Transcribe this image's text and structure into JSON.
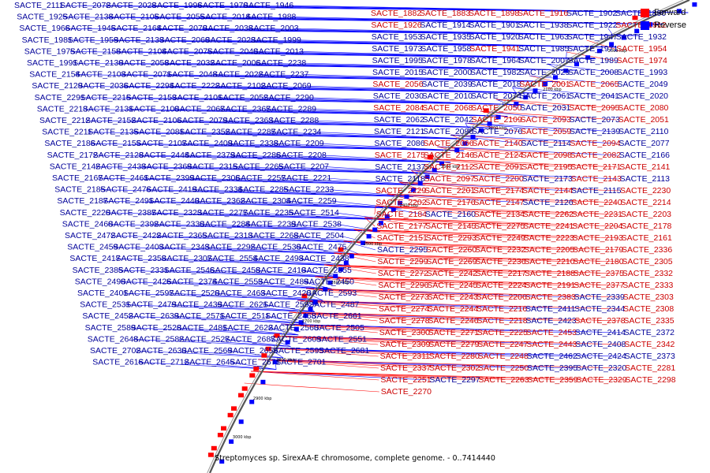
{
  "caption": "Streptomyces sp. SirexAA-E chromosome, complete genome. - 0..7414440",
  "legend": [
    {
      "label": "Forward",
      "color": "#ff0000"
    },
    {
      "label": "Reverse",
      "color": "#0000ff"
    }
  ],
  "colors": {
    "forward": "#ff0000",
    "reverse": "#0000ff",
    "forward_text": "#cc0000",
    "reverse_text": "#000099",
    "axis": "#000000"
  },
  "ticks": [
    "2000 kbp",
    "2100 kbp",
    "2200 kbp",
    "2300 kbp",
    "2400 kbp",
    "2500 kbp",
    "2600 kbp",
    "2700 kbp",
    "2800 kbp",
    "2900 kbp",
    "3000 kbp"
  ],
  "reverse_labels": [
    "SACTE_2111",
    "SACTE_2072",
    "SACTE_2028",
    "SACTE_1996",
    "SACTE_1970",
    "SACTE_1946",
    "SACTE_1925",
    "SACTE_2138",
    "SACTE_2105",
    "SACTE_2055",
    "SACTE_2014",
    "SACTE_1988",
    "SACTE_1966",
    "SACTE_1945",
    "SACTE_2164",
    "SACTE_2070",
    "SACTE_2038",
    "SACTE_2003",
    "SACTE_1981",
    "SACTE_1959",
    "SACTE_2133",
    "SACTE_2060",
    "SACTE_2023",
    "SACTE_1999",
    "SACTE_1975",
    "SACTE_2158",
    "SACTE_2104",
    "SACTE_2075",
    "SACTE_2040",
    "SACTE_2013",
    "SACTE_1991",
    "SACTE_2130",
    "SACTE_2058",
    "SACTE_2032",
    "SACTE_2006",
    "SACTE_2238",
    "SACTE_2154",
    "SACTE_2103",
    "SACTE_2071",
    "SACTE_2048",
    "SACTE_2022",
    "SACTE_2237",
    "SACTE_2129",
    "SACTE_2036",
    "SACTE_2294",
    "SACTE_2222",
    "SACTE_2102",
    "SACTE_2069",
    "SACTE_2291",
    "SACTE_2215",
    "SACTE_2153",
    "SACTE_2101",
    "SACTE_2052",
    "SACTE_2290",
    "SACTE_2213",
    "SACTE_2131",
    "SACTE_2100",
    "SACTE_2067",
    "SACTE_2367",
    "SACTE_2289",
    "SACTE_2212",
    "SACTE_2152",
    "SACTE_2106",
    "SACTE_2079",
    "SACTE_2363",
    "SACTE_2288",
    "SACTE_2211",
    "SACTE_2135",
    "SACTE_2081",
    "SACTE_2352",
    "SACTE_2287",
    "SACTE_2234",
    "SACTE_2186",
    "SACTE_2155",
    "SACTE_2107",
    "SACTE_2409",
    "SACTE_2338",
    "SACTE_2209",
    "SACTE_2172",
    "SACTE_2128",
    "SACTE_2444",
    "SACTE_2379",
    "SACTE_2286",
    "SACTE_2208",
    "SACTE_2142",
    "SACTE_2433",
    "SACTE_2369",
    "SACTE_2315",
    "SACTE_2265",
    "SACTE_2207",
    "SACTE_2167",
    "SACTE_2461",
    "SACTE_2399",
    "SACTE_2306",
    "SACTE_2257",
    "SACTE_2221",
    "SACTE_2185",
    "SACTE_2476",
    "SACTE_2419",
    "SACTE_2334",
    "SACTE_2285",
    "SACTE_2233",
    "SACTE_2187",
    "SACTE_2491",
    "SACTE_2440",
    "SACTE_2362",
    "SACTE_2304",
    "SACTE_2259",
    "SACTE_2220",
    "SACTE_2387",
    "SACTE_2323",
    "SACTE_2277",
    "SACTE_2235",
    "SACTE_2514",
    "SACTE_2460",
    "SACTE_2392",
    "SACTE_2330",
    "SACTE_2284",
    "SACTE_2239",
    "SACTE_2538",
    "SACTE_2472",
    "SACTE_2422",
    "SACTE_2365",
    "SACTE_2313",
    "SACTE_2268",
    "SACTE_2504",
    "SACTE_2459",
    "SACTE_2403",
    "SACTE_2343",
    "SACTE_2292",
    "SACTE_2530",
    "SACTE_2475",
    "SACTE_2417",
    "SACTE_2358",
    "SACTE_2307",
    "SACTE_2554",
    "SACTE_2493",
    "SACTE_2438",
    "SACTE_2385",
    "SACTE_2331",
    "SACTE_2546",
    "SACTE_2458",
    "SACTE_2410",
    "SACTE_2355",
    "SACTE_2490",
    "SACTE_2426",
    "SACTE_2374",
    "SACTE_2553",
    "SACTE_2489",
    "SACTE_2450",
    "SACTE_2401",
    "SACTE_2597",
    "SACTE_2520",
    "SACTE_2463",
    "SACTE_2420",
    "SACTE_2593",
    "SACTE_2531",
    "SACTE_2479",
    "SACTE_2439",
    "SACTE_2621",
    "SACTE_2592",
    "SACTE_2487",
    "SACTE_2452",
    "SACTE_2639",
    "SACTE_2571",
    "SACTE_2511",
    "SACTE_2468",
    "SACTE_2661",
    "SACTE_2589",
    "SACTE_2528",
    "SACTE_2481",
    "SACTE_2622",
    "SACTE_2560",
    "SACTE_2505",
    "SACTE_2648",
    "SACTE_2582",
    "SACTE_2527",
    "SACTE_2687",
    "SACTE_2609",
    "SACTE_2551",
    "SACTE_2702",
    "SACTE_2630",
    "SACTE_2569",
    "SACTE_2659",
    "SACTE_2595",
    "SACTE_2681",
    "SACTE_2616",
    "SACTE_2712",
    "SACTE_2645",
    "SACTE_2671",
    "SACTE_2701"
  ],
  "right_labels": [
    {
      "text": "SACTE_1882",
      "f": true
    },
    {
      "text": "SACTE_1883",
      "f": true
    },
    {
      "text": "SACTE_1898",
      "f": true
    },
    {
      "text": "SACTE_1916",
      "f": true
    },
    {
      "text": "SACTE_1902",
      "f": false
    },
    {
      "text": "SACTE_1890",
      "f": false
    },
    {
      "text": "SACTE_1926",
      "f": true
    },
    {
      "text": "SACTE_1914",
      "f": false
    },
    {
      "text": "SACTE_1901",
      "f": false
    },
    {
      "text": "SACTE_1938",
      "f": false
    },
    {
      "text": "SACTE_1922",
      "f": false
    },
    {
      "text": "SACTE_1912",
      "f": true
    },
    {
      "text": "SACTE_1953",
      "f": false
    },
    {
      "text": "SACTE_1935",
      "f": false
    },
    {
      "text": "SACTE_1920",
      "f": false
    },
    {
      "text": "SACTE_1963",
      "f": false
    },
    {
      "text": "SACTE_1947",
      "f": false
    },
    {
      "text": "SACTE_1932",
      "f": false
    },
    {
      "text": "SACTE_1973",
      "f": false
    },
    {
      "text": "SACTE_1958",
      "f": false
    },
    {
      "text": "SACTE_1941",
      "f": true
    },
    {
      "text": "SACTE_1985",
      "f": false
    },
    {
      "text": "SACTE_1971",
      "f": false
    },
    {
      "text": "SACTE_1954",
      "f": true
    },
    {
      "text": "SACTE_1995",
      "f": false
    },
    {
      "text": "SACTE_1978",
      "f": false
    },
    {
      "text": "SACTE_1964",
      "f": false
    },
    {
      "text": "SACTE_2007",
      "f": false
    },
    {
      "text": "SACTE_1989",
      "f": false
    },
    {
      "text": "SACTE_1974",
      "f": true
    },
    {
      "text": "SACTE_2015",
      "f": false
    },
    {
      "text": "SACTE_2000",
      "f": false
    },
    {
      "text": "SACTE_1982",
      "f": false
    },
    {
      "text": "SACTE_2029",
      "f": false
    },
    {
      "text": "SACTE_2008",
      "f": false
    },
    {
      "text": "SACTE_1993",
      "f": false
    },
    {
      "text": "SACTE_2056",
      "f": true
    },
    {
      "text": "SACTE_2039",
      "f": false
    },
    {
      "text": "SACTE_2018",
      "f": false
    },
    {
      "text": "SACTE_2001",
      "f": true
    },
    {
      "text": "SACTE_2065",
      "f": true
    },
    {
      "text": "SACTE_2049",
      "f": false
    },
    {
      "text": "SACTE_2030",
      "f": false
    },
    {
      "text": "SACTE_2010",
      "f": false
    },
    {
      "text": "SACTE_2074",
      "f": false
    },
    {
      "text": "SACTE_2061",
      "f": false
    },
    {
      "text": "SACTE_2041",
      "f": false
    },
    {
      "text": "SACTE_2020",
      "f": false
    },
    {
      "text": "SACTE_2084",
      "f": true
    },
    {
      "text": "SACTE_2068",
      "f": true
    },
    {
      "text": "SACTE_2050",
      "f": true
    },
    {
      "text": "SACTE_2031",
      "f": false
    },
    {
      "text": "SACTE_2095",
      "f": true
    },
    {
      "text": "SACTE_2080",
      "f": true
    },
    {
      "text": "SACTE_2062",
      "f": false
    },
    {
      "text": "SACTE_2042",
      "f": false
    },
    {
      "text": "SACTE_2109",
      "f": true
    },
    {
      "text": "SACTE_2093",
      "f": true
    },
    {
      "text": "SACTE_2073",
      "f": false
    },
    {
      "text": "SACTE_2051",
      "f": true
    },
    {
      "text": "SACTE_2121",
      "f": false
    },
    {
      "text": "SACTE_2096",
      "f": false
    },
    {
      "text": "SACTE_2076",
      "f": false
    },
    {
      "text": "SACTE_2059",
      "f": true
    },
    {
      "text": "SACTE_2139",
      "f": false
    },
    {
      "text": "SACTE_2110",
      "f": false
    },
    {
      "text": "SACTE_2086",
      "f": false
    },
    {
      "text": "SACTE_2066",
      "f": true
    },
    {
      "text": "SACTE_2140",
      "f": true
    },
    {
      "text": "SACTE_2114",
      "f": false
    },
    {
      "text": "SACTE_2094",
      "f": true
    },
    {
      "text": "SACTE_2077",
      "f": false
    },
    {
      "text": "SACTE_2175",
      "f": true
    },
    {
      "text": "SACTE_2146",
      "f": true
    },
    {
      "text": "SACTE_2124",
      "f": true
    },
    {
      "text": "SACTE_2098",
      "f": true
    },
    {
      "text": "SACTE_2082",
      "f": true
    },
    {
      "text": "SACTE_2166",
      "f": false
    },
    {
      "text": "SACTE_2137",
      "f": false
    },
    {
      "text": "SACTE_2112",
      "f": true
    },
    {
      "text": "SACTE_2091",
      "f": true
    },
    {
      "text": "SACTE_2195",
      "f": true
    },
    {
      "text": "SACTE_2171",
      "f": true
    },
    {
      "text": "SACTE_2141",
      "f": true
    },
    {
      "text": "SACTE_2118",
      "f": false
    },
    {
      "text": "SACTE_2097",
      "f": true
    },
    {
      "text": "SACTE_2200",
      "f": true
    },
    {
      "text": "SACTE_2173",
      "f": false
    },
    {
      "text": "SACTE_2143",
      "f": true
    },
    {
      "text": "SACTE_2113",
      "f": false
    },
    {
      "text": "SACTE_2229",
      "f": true
    },
    {
      "text": "SACTE_2201",
      "f": true
    },
    {
      "text": "SACTE_2174",
      "f": true
    },
    {
      "text": "SACTE_2144",
      "f": true
    },
    {
      "text": "SACTE_2115",
      "f": false
    },
    {
      "text": "SACTE_2230",
      "f": true
    },
    {
      "text": "SACTE_2202",
      "f": true
    },
    {
      "text": "SACTE_2176",
      "f": true
    },
    {
      "text": "SACTE_2147",
      "f": true
    },
    {
      "text": "SACTE_2126",
      "f": false
    },
    {
      "text": "SACTE_2240",
      "f": true
    },
    {
      "text": "SACTE_2214",
      "f": true
    },
    {
      "text": "SACTE_2184",
      "f": true
    },
    {
      "text": "SACTE_2160",
      "f": false
    },
    {
      "text": "SACTE_2134",
      "f": true
    },
    {
      "text": "SACTE_2262",
      "f": true
    },
    {
      "text": "SACTE_2231",
      "f": true
    },
    {
      "text": "SACTE_2203",
      "f": true
    },
    {
      "text": "SACTE_2177",
      "f": true
    },
    {
      "text": "SACTE_2145",
      "f": true
    },
    {
      "text": "SACTE_2275",
      "f": true
    },
    {
      "text": "SACTE_2241",
      "f": true
    },
    {
      "text": "SACTE_2204",
      "f": true
    },
    {
      "text": "SACTE_2178",
      "f": true
    },
    {
      "text": "SACTE_2151",
      "f": true
    },
    {
      "text": "SACTE_2293",
      "f": true
    },
    {
      "text": "SACTE_2249",
      "f": true
    },
    {
      "text": "SACTE_2223",
      "f": true
    },
    {
      "text": "SACTE_2193",
      "f": true
    },
    {
      "text": "SACTE_2161",
      "f": true
    },
    {
      "text": "SACTE_2295",
      "f": false
    },
    {
      "text": "SACTE_2260",
      "f": true
    },
    {
      "text": "SACTE_2232",
      "f": true
    },
    {
      "text": "SACTE_2205",
      "f": true
    },
    {
      "text": "SACTE_2179",
      "f": true
    },
    {
      "text": "SACTE_2336",
      "f": true
    },
    {
      "text": "SACTE_2299",
      "f": true
    },
    {
      "text": "SACTE_2269",
      "f": true
    },
    {
      "text": "SACTE_2236",
      "f": true
    },
    {
      "text": "SACTE_2210",
      "f": true
    },
    {
      "text": "SACTE_2180",
      "f": true
    },
    {
      "text": "SACTE_2305",
      "f": true
    },
    {
      "text": "SACTE_2272",
      "f": true
    },
    {
      "text": "SACTE_2242",
      "f": true
    },
    {
      "text": "SACTE_2217",
      "f": true
    },
    {
      "text": "SACTE_2188",
      "f": true
    },
    {
      "text": "SACTE_2375",
      "f": true
    },
    {
      "text": "SACTE_2332",
      "f": true
    },
    {
      "text": "SACTE_2296",
      "f": true
    },
    {
      "text": "SACTE_2245",
      "f": true
    },
    {
      "text": "SACTE_2224",
      "f": true
    },
    {
      "text": "SACTE_2191",
      "f": true
    },
    {
      "text": "SACTE_2377",
      "f": true
    },
    {
      "text": "SACTE_2333",
      "f": true
    },
    {
      "text": "SACTE_2273",
      "f": true
    },
    {
      "text": "SACTE_2243",
      "f": true
    },
    {
      "text": "SACTE_2206",
      "f": true
    },
    {
      "text": "SACTE_2383",
      "f": true
    },
    {
      "text": "SACTE_2339",
      "f": false
    },
    {
      "text": "SACTE_2303",
      "f": true
    },
    {
      "text": "SACTE_2274",
      "f": true
    },
    {
      "text": "SACTE_2244",
      "f": true
    },
    {
      "text": "SACTE_2216",
      "f": true
    },
    {
      "text": "SACTE_2411",
      "f": false
    },
    {
      "text": "SACTE_2344",
      "f": false
    },
    {
      "text": "SACTE_2308",
      "f": true
    },
    {
      "text": "SACTE_2278",
      "f": true
    },
    {
      "text": "SACTE_2246",
      "f": true
    },
    {
      "text": "SACTE_2218",
      "f": true
    },
    {
      "text": "SACTE_2423",
      "f": false
    },
    {
      "text": "SACTE_2378",
      "f": true
    },
    {
      "text": "SACTE_2335",
      "f": true
    },
    {
      "text": "SACTE_2300",
      "f": true
    },
    {
      "text": "SACTE_2271",
      "f": true
    },
    {
      "text": "SACTE_2225",
      "f": true
    },
    {
      "text": "SACTE_2453",
      "f": true
    },
    {
      "text": "SACTE_2414",
      "f": false
    },
    {
      "text": "SACTE_2372",
      "f": false
    },
    {
      "text": "SACTE_2309",
      "f": true
    },
    {
      "text": "SACTE_2279",
      "f": true
    },
    {
      "text": "SACTE_2247",
      "f": true
    },
    {
      "text": "SACTE_2443",
      "f": true
    },
    {
      "text": "SACTE_2408",
      "f": false
    },
    {
      "text": "SACTE_2342",
      "f": true
    },
    {
      "text": "SACTE_2311",
      "f": true
    },
    {
      "text": "SACTE_2280",
      "f": true
    },
    {
      "text": "SACTE_2248",
      "f": true
    },
    {
      "text": "SACTE_2462",
      "f": false
    },
    {
      "text": "SACTE_2424",
      "f": false
    },
    {
      "text": "SACTE_2373",
      "f": false
    },
    {
      "text": "SACTE_2337",
      "f": true
    },
    {
      "text": "SACTE_2302",
      "f": true
    },
    {
      "text": "SACTE_2250",
      "f": true
    },
    {
      "text": "SACTE_2395",
      "f": false
    },
    {
      "text": "SACTE_2320",
      "f": false
    },
    {
      "text": "SACTE_2281",
      "f": true
    },
    {
      "text": "SACTE_2251",
      "f": true
    },
    {
      "text": "SACTE_2297",
      "f": false
    },
    {
      "text": "SACTE_2263",
      "f": true
    },
    {
      "text": "SACTE_2359",
      "f": true
    },
    {
      "text": "SACTE_2329",
      "f": true
    },
    {
      "text": "SACTE_2298",
      "f": true
    },
    {
      "text": "SACTE_2270",
      "f": true
    }
  ]
}
